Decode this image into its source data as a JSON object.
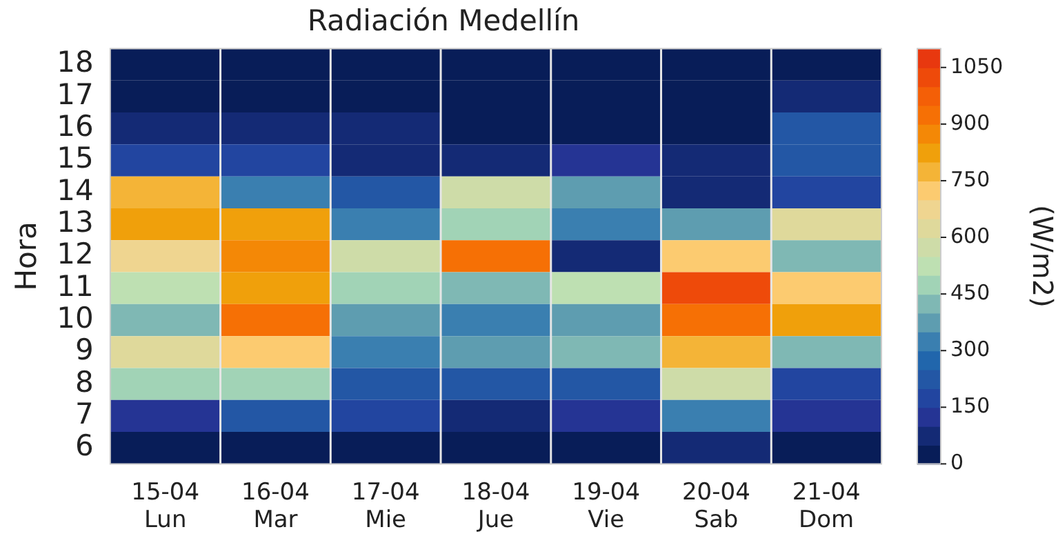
{
  "chart_data": {
    "type": "heatmap",
    "title": "Radiación Medellín",
    "ylabel": "Hora",
    "clabel": "(W/m2)",
    "categories": [
      "15-04\nLun",
      "16-04\nMar",
      "17-04\nMie",
      "18-04\nJue",
      "19-04\nVie",
      "20-04\nSab",
      "21-04\nDom"
    ],
    "y_categories": [
      "18",
      "17",
      "16",
      "15",
      "14",
      "13",
      "12",
      "11",
      "10",
      "9",
      "8",
      "7",
      "6"
    ],
    "cells": [
      [
        25,
        25,
        25,
        25,
        25,
        25,
        25
      ],
      [
        25,
        25,
        25,
        25,
        25,
        25,
        75
      ],
      [
        75,
        75,
        75,
        25,
        25,
        25,
        225
      ],
      [
        175,
        175,
        75,
        75,
        125,
        75,
        225
      ],
      [
        775,
        325,
        225,
        575,
        375,
        75,
        175
      ],
      [
        825,
        825,
        325,
        475,
        325,
        375,
        625
      ],
      [
        675,
        875,
        575,
        925,
        75,
        725,
        425
      ],
      [
        525,
        825,
        475,
        425,
        525,
        1025,
        725
      ],
      [
        425,
        925,
        375,
        325,
        375,
        925,
        825
      ],
      [
        625,
        725,
        325,
        375,
        425,
        775,
        425
      ],
      [
        475,
        475,
        225,
        225,
        225,
        575,
        175
      ],
      [
        125,
        225,
        175,
        75,
        125,
        325,
        125
      ],
      [
        25,
        25,
        25,
        25,
        25,
        75,
        25
      ]
    ],
    "clim": [
      0,
      1100
    ],
    "cticks": [
      0,
      150,
      300,
      450,
      600,
      750,
      900,
      1050
    ],
    "grid": "x",
    "legend": false
  }
}
